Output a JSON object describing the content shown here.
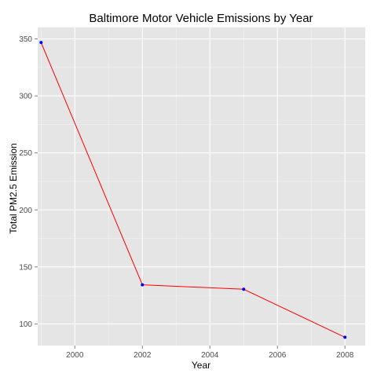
{
  "chart_data": {
    "type": "line",
    "title": "Baltimore Motor Vehicle Emissions by Year",
    "xlabel": "Year",
    "ylabel": "Total PM2.5 Emission",
    "x": [
      1999,
      2002,
      2005,
      2008
    ],
    "series": [
      {
        "values": [
          346.82,
          134.31,
          130.43,
          88.28
        ]
      }
    ],
    "xlim": [
      1998.9,
      2008.6
    ],
    "ylim": [
      81,
      360
    ],
    "x_ticks": [
      2000,
      2002,
      2004,
      2006,
      2008
    ],
    "x_tick_labels": [
      "2000",
      "2002",
      "2004",
      "2006",
      "2008"
    ],
    "y_ticks": [
      100,
      150,
      200,
      250,
      300,
      350
    ],
    "y_tick_labels": [
      "100",
      "150",
      "200",
      "250",
      "300",
      "350"
    ],
    "grid": true,
    "colors": {
      "panel_background": "#e5e5e5",
      "grid_major": "#ffffff",
      "grid_minor": "#f2f2f2",
      "line": "#ff0000",
      "point": "#0000ff",
      "tick_mark": "#7f7f7f"
    }
  }
}
